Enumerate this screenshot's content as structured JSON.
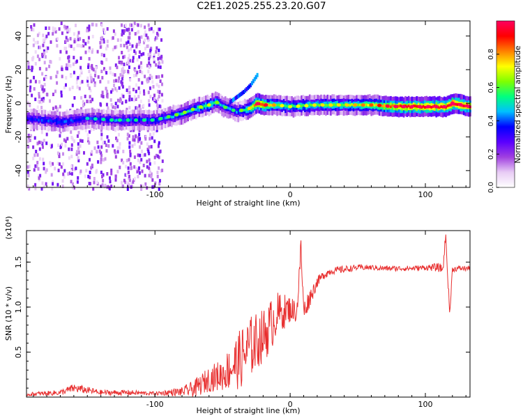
{
  "figure_title": "C2E1.2025.255.23.20.G07",
  "chart_data": [
    {
      "type": "heatmap",
      "name": "spectrogram",
      "xlabel": "Height of straight line (km)",
      "ylabel": "Frequency (Hz)",
      "xlim": [
        -195,
        133
      ],
      "ylim": [
        -50,
        49
      ],
      "xticks": [
        -100,
        0,
        100
      ],
      "yticks": [
        -40,
        -20,
        0,
        20,
        40
      ],
      "x_tick_labels": [
        "-100",
        "0",
        "100"
      ],
      "y_tick_labels": [
        "-40",
        "-20",
        "0",
        "20",
        "40"
      ],
      "colorbar": {
        "label": "Normalized spectral amplitude",
        "range": [
          0.0,
          1.0
        ],
        "ticks": [
          0.0,
          0.2,
          0.4,
          0.6,
          0.8
        ],
        "tick_labels": [
          "0.0",
          "0.2",
          "0.4",
          "0.6",
          "0.8"
        ],
        "colors": [
          "#ffffff",
          "#e8ccf5",
          "#a040e0",
          "#5a00ff",
          "#0000ff",
          "#00c0ff",
          "#00ff80",
          "#7fff00",
          "#ffff00",
          "#ff8000",
          "#ff0000",
          "#ff0060"
        ]
      },
      "ridge_x": [
        -195,
        -170,
        -150,
        -130,
        -110,
        -100,
        -90,
        -80,
        -70,
        -60,
        -55,
        -50,
        -45,
        -40,
        -35,
        -30,
        -25,
        -20,
        -10,
        0,
        20,
        40,
        60,
        80,
        100,
        115,
        120,
        133
      ],
      "ridge_freq": [
        -9,
        -11,
        -9,
        -10,
        -10,
        -10,
        -8,
        -6,
        -3,
        -1,
        1,
        -2,
        -3,
        -5,
        -4,
        -3,
        0,
        -1,
        -1,
        -2,
        -1,
        -1,
        -1,
        -2,
        -2,
        -2,
        0,
        -2
      ],
      "ridge_amp": [
        0.35,
        0.4,
        0.35,
        0.4,
        0.4,
        0.4,
        0.45,
        0.5,
        0.5,
        0.55,
        0.5,
        0.45,
        0.45,
        0.4,
        0.5,
        0.6,
        0.95,
        0.85,
        0.6,
        0.55,
        0.6,
        0.6,
        0.7,
        0.9,
        0.95,
        0.9,
        1.0,
        0.95
      ],
      "branch_x": [
        -45,
        -40,
        -35,
        -30,
        -25
      ],
      "branch_freq": [
        0,
        3,
        6,
        10,
        16
      ]
    },
    {
      "type": "line",
      "name": "snr",
      "xlabel": "Height of straight line (km)",
      "ylabel": "SNR (10 * v/v)",
      "scale_label": "(x10⁴)",
      "xlim": [
        -195,
        133
      ],
      "ylim": [
        0,
        1.85
      ],
      "xticks": [
        -100,
        0,
        100
      ],
      "yticks": [
        0.5,
        1.0,
        1.5
      ],
      "x_tick_labels": [
        "-100",
        "0",
        "100"
      ],
      "y_tick_labels": [
        "0.5",
        "1.0",
        "1.5"
      ],
      "series": [
        {
          "name": "SNR",
          "color": "#e83030",
          "x": [
            -195,
            -170,
            -160,
            -140,
            -120,
            -100,
            -80,
            -70,
            -60,
            -50,
            -40,
            -35,
            -30,
            -25,
            -20,
            -15,
            -10,
            -5,
            0,
            5,
            8,
            10,
            15,
            20,
            25,
            30,
            40,
            50,
            60,
            70,
            80,
            90,
            100,
            110,
            113,
            115,
            118,
            120,
            125,
            133
          ],
          "y": [
            0.03,
            0.05,
            0.1,
            0.05,
            0.05,
            0.04,
            0.06,
            0.1,
            0.2,
            0.25,
            0.38,
            0.45,
            0.55,
            0.62,
            0.68,
            0.78,
            0.92,
            0.95,
            0.98,
            0.95,
            1.65,
            0.95,
            1.12,
            1.28,
            1.36,
            1.4,
            1.42,
            1.44,
            1.44,
            1.43,
            1.43,
            1.43,
            1.44,
            1.44,
            1.42,
            1.8,
            0.92,
            1.42,
            1.43,
            1.43
          ],
          "noise_amplitude": [
            0.02,
            0.03,
            0.05,
            0.03,
            0.03,
            0.02,
            0.05,
            0.1,
            0.14,
            0.18,
            0.3,
            0.35,
            0.35,
            0.32,
            0.3,
            0.3,
            0.25,
            0.2,
            0.15,
            0.12,
            0.15,
            0.12,
            0.1,
            0.06,
            0.05,
            0.04,
            0.04,
            0.03,
            0.03,
            0.03,
            0.03,
            0.03,
            0.03,
            0.05,
            0.05,
            0.05,
            0.05,
            0.03,
            0.03,
            0.03
          ]
        }
      ]
    }
  ]
}
